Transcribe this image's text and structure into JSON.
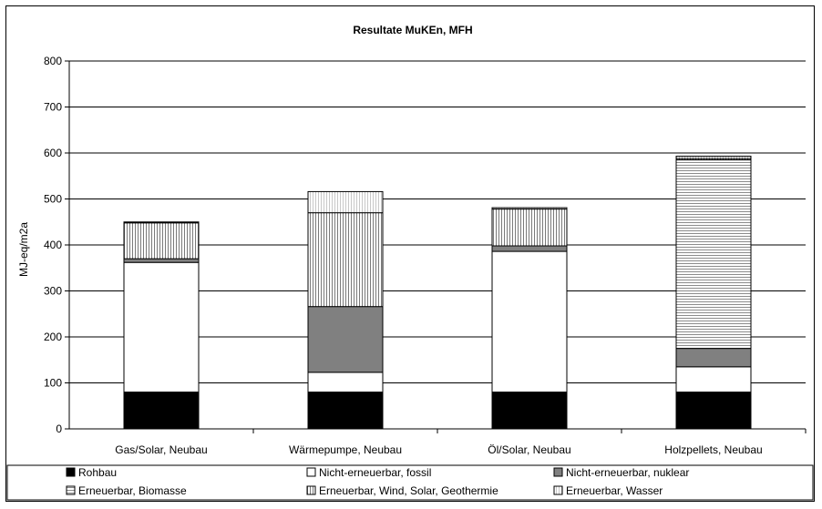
{
  "chart_data": {
    "type": "bar",
    "stacked": true,
    "title": "Resultate MuKEn, MFH",
    "ylabel": "MJ-eq/m2a",
    "xlabel": "",
    "ylim": [
      0,
      800
    ],
    "yticks": [
      0,
      100,
      200,
      300,
      400,
      500,
      600,
      700,
      800
    ],
    "grid": true,
    "legend_position": "bottom",
    "categories": [
      "Gas/Solar, Neubau",
      "Wärmepumpe, Neubau",
      "Öl/Solar, Neubau",
      "Holzpellets, Neubau"
    ],
    "series": [
      {
        "name": "Rohbau",
        "color": "#000000",
        "pattern": "solid",
        "values": [
          80,
          80,
          80,
          80
        ]
      },
      {
        "name": "Nicht-erneuerbar, fossil",
        "color": "#ffffff",
        "pattern": "solid",
        "values": [
          282,
          43,
          306,
          55
        ]
      },
      {
        "name": "Nicht-erneuerbar, nuklear",
        "color": "#808080",
        "pattern": "solid",
        "values": [
          8,
          143,
          12,
          40
        ]
      },
      {
        "name": "Erneuerbar, Biomasse",
        "color": "#d9d9d9",
        "pattern": "hlines",
        "values": [
          0,
          0,
          0,
          410
        ]
      },
      {
        "name": "Erneuerbar, Wind, Solar, Geothermie",
        "color": "#a6a6a6",
        "pattern": "vlines",
        "values": [
          78,
          204,
          80,
          3
        ]
      },
      {
        "name": "Erneuerbar, Wasser",
        "color": "#f2f2f2",
        "pattern": "vlines-light",
        "values": [
          2,
          46,
          3,
          5
        ]
      }
    ]
  }
}
